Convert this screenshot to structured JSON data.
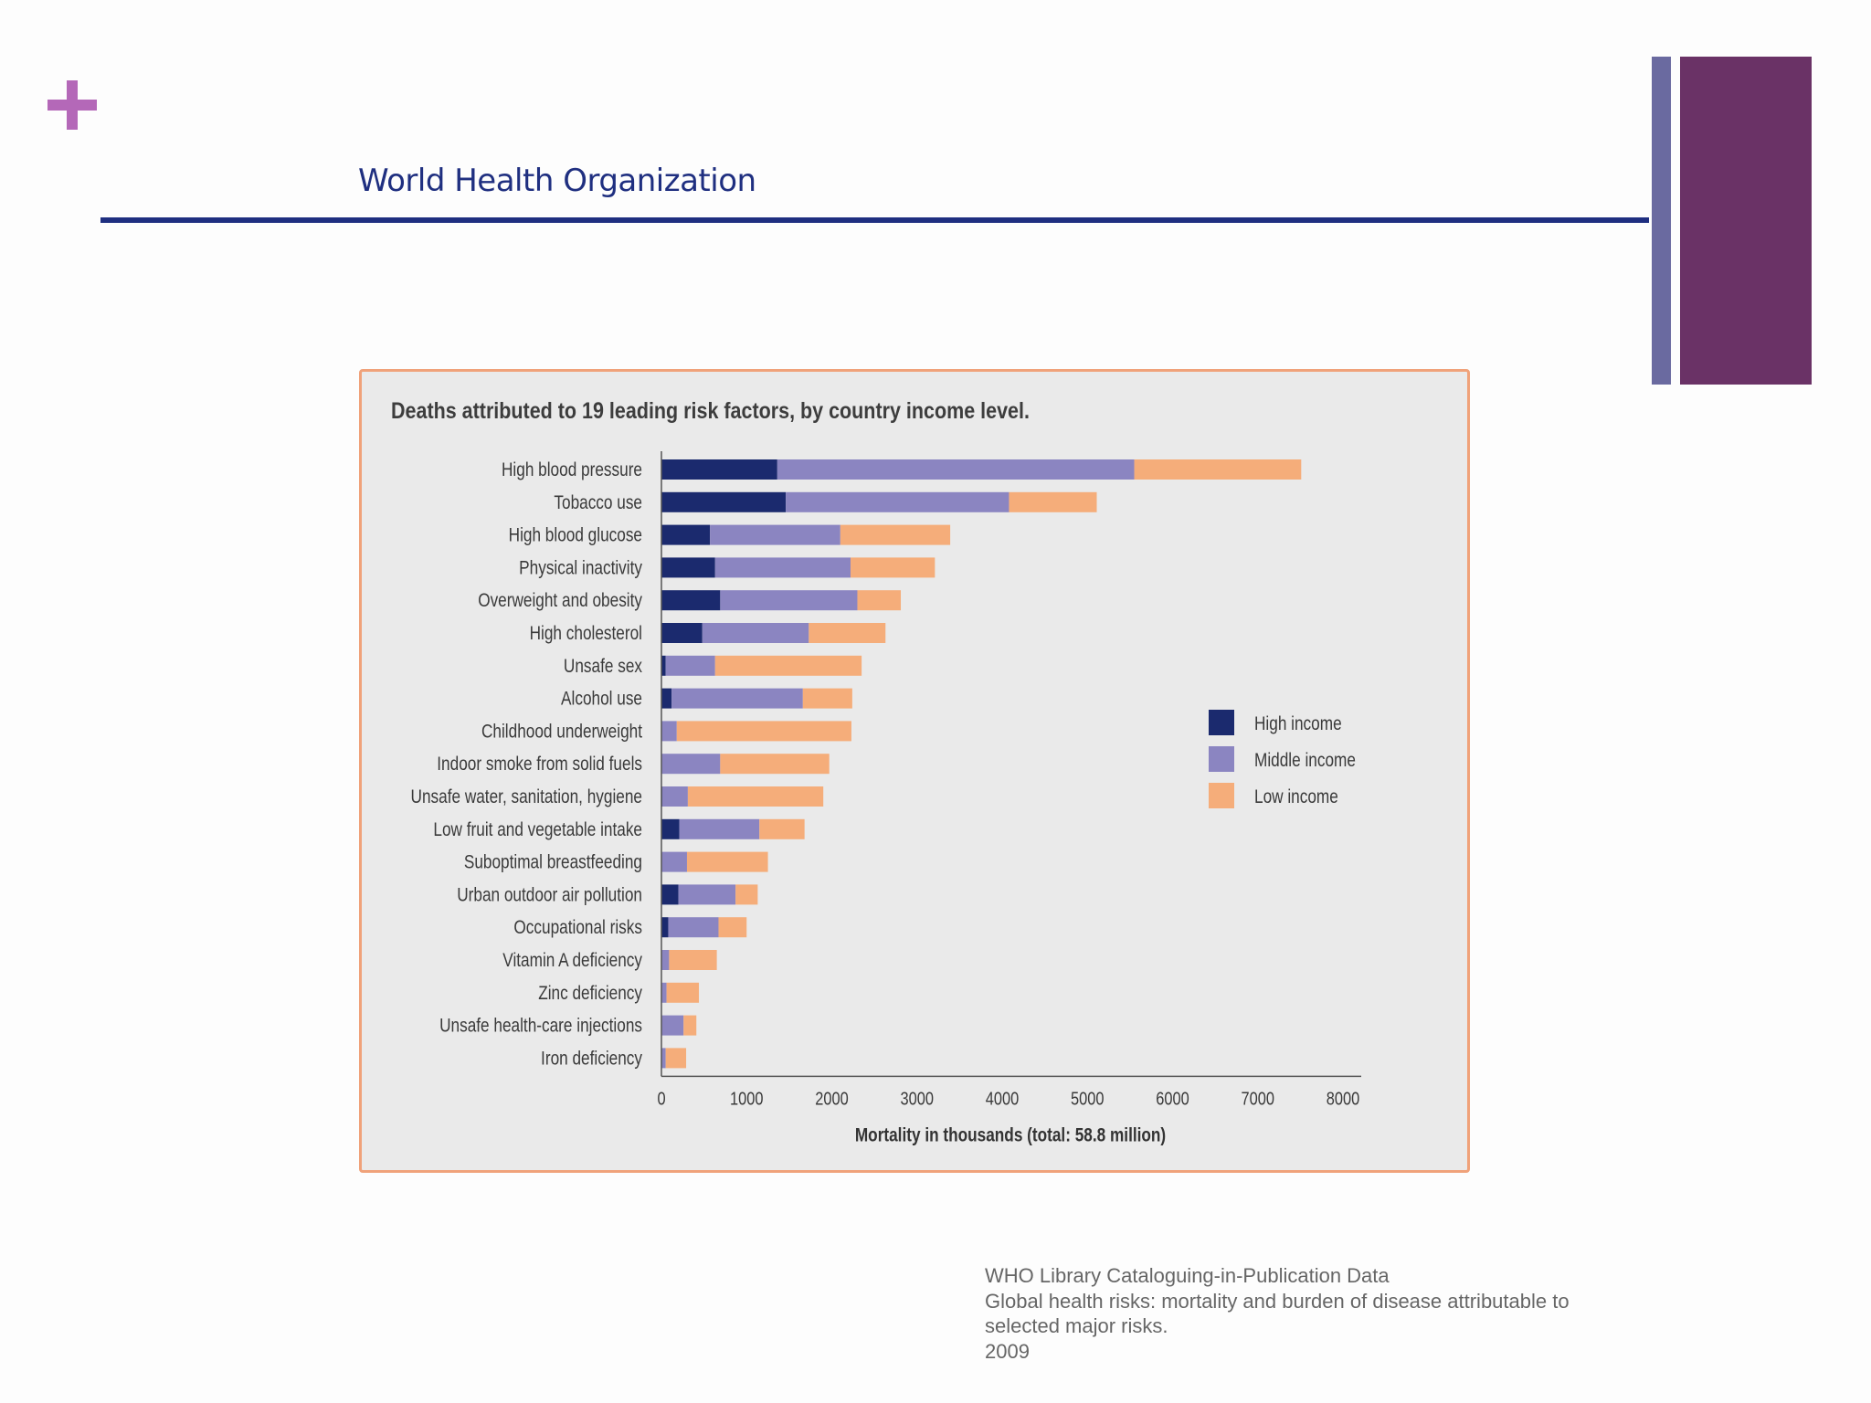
{
  "header": {
    "org_title": "World Health Organization"
  },
  "colors": {
    "accent_plus": "#b468b8",
    "accent_bar_light": "#6a6aa0",
    "accent_bar_dark": "#6a3266",
    "rule": "#1f2f80"
  },
  "chart_data": {
    "type": "bar",
    "orientation": "horizontal",
    "stacked": true,
    "title": "Deaths attributed to 19 leading risk factors, by country income level.",
    "xlabel": "Mortality in thousands (total: 58.8 million)",
    "ylabel": "",
    "xlim": [
      0,
      8000
    ],
    "xticks": [
      "0",
      "1000",
      "2000",
      "3000",
      "4000",
      "5000",
      "6000",
      "7000",
      "8000"
    ],
    "grid": false,
    "legend_position": "right",
    "categories": [
      "High blood pressure",
      "Tobacco use",
      "High blood glucose",
      "Physical inactivity",
      "Overweight and obesity",
      "High cholesterol",
      "Unsafe sex",
      "Alcohol use",
      "Childhood underweight",
      "Indoor smoke from solid fuels",
      "Unsafe water, sanitation, hygiene",
      "Low fruit and vegetable intake",
      "Suboptimal breastfeeding",
      "Urban outdoor air pollution",
      "Occupational risks",
      "Vitamin A deficiency",
      "Zinc deficiency",
      "Unsafe health-care injections",
      "Iron deficiency"
    ],
    "series": [
      {
        "name": "High income",
        "color": "#1b2a6e",
        "values": [
          1360,
          1460,
          570,
          630,
          690,
          480,
          50,
          120,
          0,
          0,
          10,
          210,
          0,
          200,
          80,
          0,
          0,
          0,
          0
        ]
      },
      {
        "name": "Middle income",
        "color": "#8b85c1",
        "values": [
          4190,
          2620,
          1530,
          1590,
          1610,
          1250,
          580,
          1540,
          180,
          690,
          300,
          940,
          300,
          670,
          590,
          90,
          60,
          260,
          50
        ]
      },
      {
        "name": "Low income",
        "color": "#f5ad7a",
        "values": [
          1960,
          1030,
          1290,
          990,
          510,
          900,
          1720,
          580,
          2050,
          1280,
          1590,
          530,
          950,
          260,
          330,
          560,
          380,
          150,
          240
        ]
      }
    ]
  },
  "caption": {
    "lines": [
      "WHO Library Cataloguing-in-Publication Data",
      "Global health risks: mortality and burden of disease attributable to",
      "selected major risks.",
      "2009"
    ]
  }
}
